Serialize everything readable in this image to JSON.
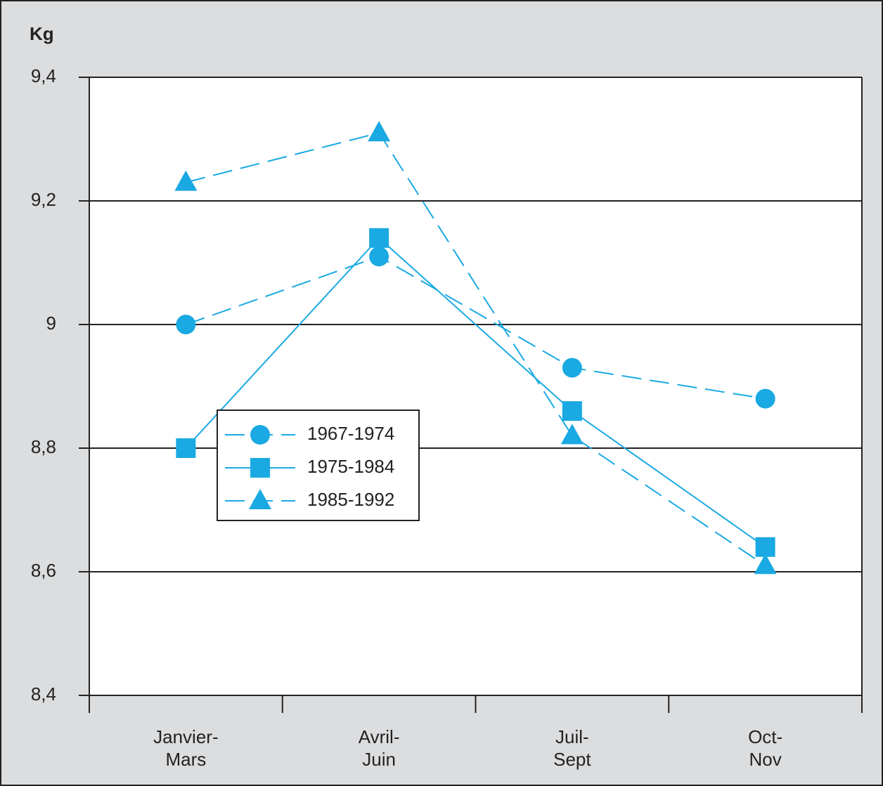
{
  "chart_data": {
    "type": "line",
    "ylabel": "Kg",
    "categories": [
      "Janvier-\nMars",
      "Avril-\nJuin",
      "Juil-\nSept",
      "Oct-\nNov"
    ],
    "series": [
      {
        "name": "1967-1974",
        "color": "#1aa9e2",
        "marker": "circle",
        "dashed": true,
        "values": [
          9.0,
          9.11,
          8.93,
          8.88
        ]
      },
      {
        "name": "1975-1984",
        "color": "#1aa9e2",
        "marker": "square",
        "dashed": false,
        "values": [
          8.8,
          9.14,
          8.86,
          8.64
        ]
      },
      {
        "name": "1985-1992",
        "color": "#1aa9e2",
        "marker": "triangle",
        "dashed": true,
        "values": [
          9.23,
          9.31,
          8.82,
          8.61
        ]
      }
    ],
    "ylim": [
      8.4,
      9.4
    ],
    "yticks": [
      {
        "value": 8.4,
        "label": "8,4"
      },
      {
        "value": 8.6,
        "label": "8,6"
      },
      {
        "value": 8.8,
        "label": "8,8"
      },
      9,
      {
        "value": 9.2,
        "label": "9,2"
      },
      {
        "value": 9.4,
        "label": "9,4"
      }
    ],
    "grid": true,
    "legend": "lower left"
  }
}
